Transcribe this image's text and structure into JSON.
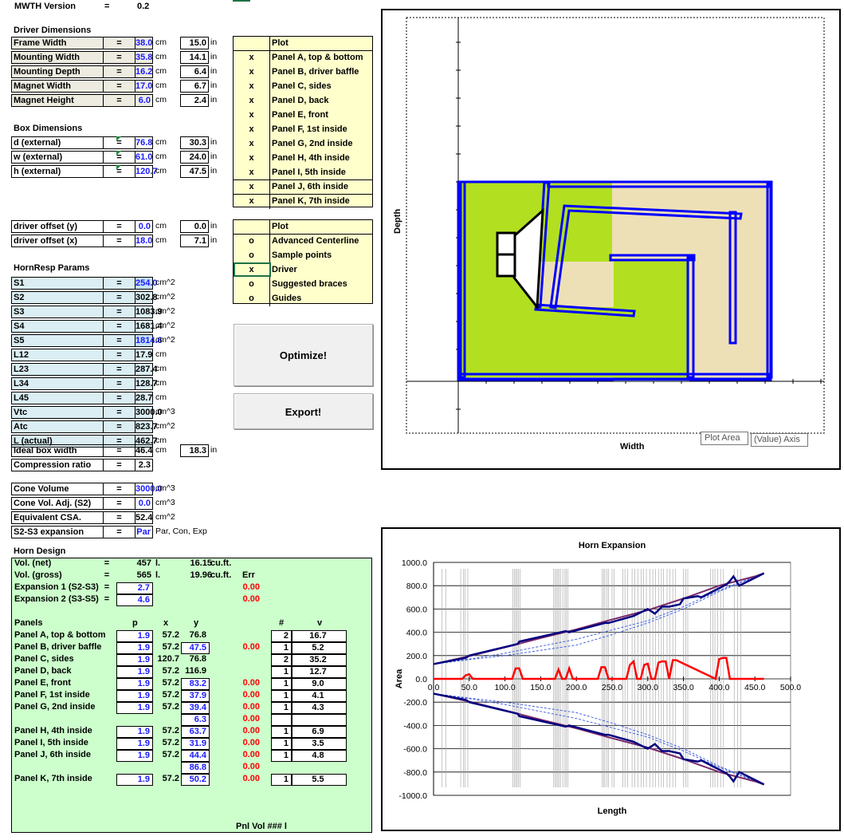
{
  "version": {
    "label": "MWTH Version",
    "eq": "=",
    "value": "0.2"
  },
  "driver": {
    "title": "Driver Dimensions",
    "rows": [
      {
        "name": "Frame Width",
        "value": "38.0",
        "unit": "cm",
        "in": "15.0"
      },
      {
        "name": "Mounting Width",
        "value": "35.8",
        "unit": "cm",
        "in": "14.1"
      },
      {
        "name": "Mounting Depth",
        "value": "16.2",
        "unit": "cm",
        "in": "6.4"
      },
      {
        "name": "Magnet Width",
        "value": "17.0",
        "unit": "cm",
        "in": "6.7"
      },
      {
        "name": "Magnet Height",
        "value": "6.0",
        "unit": "cm",
        "in": "2.4"
      }
    ]
  },
  "box": {
    "title": "Box Dimensions",
    "rows": [
      {
        "name": "d (external)",
        "value": "76.8",
        "unit": "cm",
        "in": "30.3"
      },
      {
        "name": "w (external)",
        "value": "61.0",
        "unit": "cm",
        "in": "24.0"
      },
      {
        "name": "h (external)",
        "value": "120.7",
        "unit": "cm",
        "in": "47.5"
      }
    ]
  },
  "offset": {
    "rows": [
      {
        "name": "driver offset (y)",
        "value": "0.0",
        "unit": "cm",
        "in": "0.0"
      },
      {
        "name": "driver offset (x)",
        "value": "18.0",
        "unit": "cm",
        "in": "7.1"
      }
    ]
  },
  "in_unit": "in",
  "eq": "=",
  "hornresp": {
    "title": "HornResp Params",
    "rows": [
      {
        "name": "S1",
        "value": "254.0",
        "unit": "cm^2",
        "blue": true
      },
      {
        "name": "S2",
        "value": "302.8",
        "unit": "cm^2",
        "blue": false
      },
      {
        "name": "S3",
        "value": "1083.9",
        "unit": "cm^2",
        "blue": false
      },
      {
        "name": "S4",
        "value": "1681.4",
        "unit": "cm^2",
        "blue": false
      },
      {
        "name": "S5",
        "value": "1814.6",
        "unit": "cm^2",
        "blue": true
      },
      {
        "name": "L12",
        "value": "17.9",
        "unit": "cm",
        "blue": false
      },
      {
        "name": "L23",
        "value": "287.4",
        "unit": "cm",
        "blue": false
      },
      {
        "name": "L34",
        "value": "128.7",
        "unit": "cm",
        "blue": false
      },
      {
        "name": "L45",
        "value": "28.7",
        "unit": "cm",
        "blue": false
      },
      {
        "name": "Vtc",
        "value": "3000.0",
        "unit": "cm^3",
        "blue": false
      },
      {
        "name": "Atc",
        "value": "823.7",
        "unit": "cm^2",
        "blue": false
      },
      {
        "name": "L (actual)",
        "value": "462.7",
        "unit": "cm",
        "blue": false
      }
    ]
  },
  "ideal": {
    "rows": [
      {
        "name": "Ideal box width",
        "value": "46.4",
        "unit": "cm",
        "in": "18.3"
      },
      {
        "name": "Compression ratio",
        "value": "2.3",
        "unit": "",
        "in": ""
      }
    ]
  },
  "cone": {
    "rows": [
      {
        "name": "Cone Volume",
        "value": "3000.0",
        "unit": "cm^3",
        "blue": true
      },
      {
        "name": "Cone Vol. Adj. (S2)",
        "value": "0.0",
        "unit": "cm^3",
        "blue": true
      },
      {
        "name": "Equivalent CSA.",
        "value": "52.4",
        "unit": "cm^2",
        "blue": false
      },
      {
        "name": "S2-S3 expansion",
        "value": "Par",
        "unit": "Par, Con, Exp",
        "blue": true
      }
    ]
  },
  "plot1": {
    "header": "Plot",
    "items": [
      {
        "mark": "x",
        "label": "Panel A, top & bottom"
      },
      {
        "mark": "x",
        "label": "Panel B, driver baffle"
      },
      {
        "mark": "x",
        "label": "Panel C, sides"
      },
      {
        "mark": "x",
        "label": "Panel D, back"
      },
      {
        "mark": "x",
        "label": "Panel E, front"
      },
      {
        "mark": "x",
        "label": "Panel F, 1st inside"
      },
      {
        "mark": "x",
        "label": "Panel G, 2nd inside"
      },
      {
        "mark": "x",
        "label": "Panel H, 4th inside"
      },
      {
        "mark": "x",
        "label": "Panel I, 5th inside"
      },
      {
        "mark": "x",
        "label": "Panel J, 6th inside"
      },
      {
        "mark": "x",
        "label": "Panel K, 7th inside"
      }
    ]
  },
  "plot2": {
    "header": "Plot",
    "items": [
      {
        "mark": "o",
        "label": "Advanced Centerline"
      },
      {
        "mark": "o",
        "label": "Sample points"
      },
      {
        "mark": "x",
        "label": "Driver"
      },
      {
        "mark": "o",
        "label": "Suggested braces"
      },
      {
        "mark": "o",
        "label": "Guides"
      }
    ]
  },
  "buttons": {
    "optimize": "Optimize!",
    "export": "Export!"
  },
  "layout_chart": {
    "ylabel": "Depth",
    "xlabel": "Width",
    "tooltip1": "Plot Area",
    "tooltip2": "(Value) Axis"
  },
  "horn": {
    "title": "Horn Design",
    "vol_net": {
      "label": "Vol. (net)",
      "l": "457",
      "l_unit": "l.",
      "ft": "16.15",
      "ft_unit": "cu.ft."
    },
    "vol_gross": {
      "label": "Vol. (gross)",
      "l": "565",
      "l_unit": "l.",
      "ft": "19.96",
      "ft_unit": "cu.ft.",
      "err": "Err"
    },
    "exp1": {
      "label": "Expansion 1 (S2-S3)",
      "value": "2.7",
      "err": "0.00"
    },
    "exp2": {
      "label": "Expansion 2 (S3-S5)",
      "value": "4.6",
      "err": "0.00"
    },
    "cols": {
      "panels": "Panels",
      "p": "p",
      "x": "x",
      "y": "y",
      "n": "#",
      "v": "v"
    },
    "panels": [
      {
        "name": "Panel A, top & bottom",
        "p": "1.9",
        "x": "57.2",
        "y": "76.8",
        "ybox": false,
        "err": "",
        "n": "2",
        "v": "16.7"
      },
      {
        "name": "Panel B, driver baffle",
        "p": "1.9",
        "x": "57.2",
        "y": "47.5",
        "ybox": true,
        "err": "0.00",
        "n": "1",
        "v": "5.2"
      },
      {
        "name": "Panel C, sides",
        "p": "1.9",
        "x": "120.7",
        "y": "76.8",
        "ybox": false,
        "err": "",
        "n": "2",
        "v": "35.2"
      },
      {
        "name": "Panel D, back",
        "p": "1.9",
        "x": "57.2",
        "y": "116.9",
        "ybox": false,
        "err": "",
        "n": "1",
        "v": "12.7"
      },
      {
        "name": "Panel E, front",
        "p": "1.9",
        "x": "57.2",
        "y": "83.2",
        "ybox": true,
        "err": "0.00",
        "n": "1",
        "v": "9.0"
      },
      {
        "name": "Panel F, 1st inside",
        "p": "1.9",
        "x": "57.2",
        "y": "37.9",
        "ybox": true,
        "err": "0.00",
        "n": "1",
        "v": "4.1"
      },
      {
        "name": "Panel G, 2nd inside",
        "p": "1.9",
        "x": "57.2",
        "y": "39.4",
        "ybox": true,
        "err": "0.00",
        "n": "1",
        "v": "4.3"
      }
    ],
    "extra1": {
      "y": "6.3",
      "err": "0.00"
    },
    "panels2": [
      {
        "name": "Panel H, 4th inside",
        "p": "1.9",
        "x": "57.2",
        "y": "63.7",
        "err": "0.00",
        "n": "1",
        "v": "6.9"
      },
      {
        "name": "Panel I, 5th inside",
        "p": "1.9",
        "x": "57.2",
        "y": "31.9",
        "err": "0.00",
        "n": "1",
        "v": "3.5"
      },
      {
        "name": "Panel J, 6th inside",
        "p": "1.9",
        "x": "57.2",
        "y": "44.4",
        "err": "0.00",
        "n": "1",
        "v": "4.8"
      }
    ],
    "extra2": {
      "y": "86.8",
      "err": "0.00"
    },
    "panelK": {
      "name": "Panel K, 7th inside",
      "p": "1.9",
      "x": "57.2",
      "y": "50.2",
      "err": "0.00",
      "n": "1",
      "v": "5.5"
    },
    "pnl_vol": "Pnl Vol   ###  l"
  },
  "chart_data": {
    "type": "line",
    "title": "Horn Expansion",
    "xlabel": "Length",
    "ylabel": "Area",
    "xlim": [
      0,
      500
    ],
    "ylim": [
      -1000,
      1000
    ],
    "xticks": [
      "0.0",
      "50.0",
      "100.0",
      "150.0",
      "200.0",
      "250.0",
      "300.0",
      "350.0",
      "400.0",
      "450.0",
      "500.0"
    ],
    "yticks": [
      "1000.0",
      "800.0",
      "600.0",
      "400.0",
      "200.0",
      "0.0",
      "-200.0",
      "-400.0",
      "-600.0",
      "-800.0",
      "-1000.0"
    ],
    "colors": {
      "blue": "#000080",
      "purple": "#7a2a6a",
      "red": "#ff0000",
      "dash": "#3355dd",
      "grid": "#a0a0a0"
    },
    "series": [
      {
        "x": [
          0,
          45,
          50,
          118,
          120,
          185,
          190,
          240,
          245,
          280,
          290,
          300,
          310,
          320,
          330,
          345,
          350,
          370,
          375,
          410,
          415,
          420,
          428,
          462.7
        ],
        "values": [
          127,
          180,
          200,
          300,
          320,
          410,
          400,
          480,
          480,
          540,
          570,
          600,
          560,
          620,
          620,
          640,
          690,
          710,
          700,
          810,
          840,
          880,
          800,
          907
        ]
      },
      {
        "x": [
          0,
          50,
          100,
          150,
          200,
          250,
          300,
          350,
          400,
          450,
          462.7
        ],
        "values": [
          127,
          195,
          270,
          350,
          425,
          510,
          590,
          690,
          800,
          880,
          907
        ]
      },
      {
        "x": [
          0,
          40,
          45,
          50,
          55,
          110,
          115,
          120,
          125,
          170,
          175,
          180,
          185,
          190,
          195,
          230,
          235,
          240,
          245,
          270,
          275,
          280,
          285,
          290,
          295,
          300,
          305,
          310,
          315,
          320,
          325,
          330,
          335,
          340,
          395,
          400,
          405,
          410,
          415,
          462.7
        ],
        "values": [
          0,
          0,
          30,
          40,
          0,
          0,
          90,
          90,
          0,
          0,
          80,
          0,
          0,
          90,
          0,
          0,
          100,
          100,
          0,
          0,
          120,
          150,
          0,
          0,
          120,
          130,
          0,
          0,
          140,
          150,
          150,
          0,
          160,
          160,
          0,
          170,
          180,
          180,
          0,
          0
        ]
      }
    ],
    "dash_series": [
      {
        "x": [
          0,
          50,
          100,
          150,
          200,
          250,
          300,
          350,
          400,
          462.7
        ],
        "values": [
          127,
          170,
          220,
          280,
          340,
          420,
          500,
          620,
          760,
          907
        ]
      },
      {
        "x": [
          0,
          50,
          100,
          150,
          200,
          250,
          300,
          350,
          400,
          462.7
        ],
        "values": [
          127,
          165,
          200,
          245,
          290,
          380,
          480,
          600,
          750,
          907
        ]
      }
    ]
  }
}
